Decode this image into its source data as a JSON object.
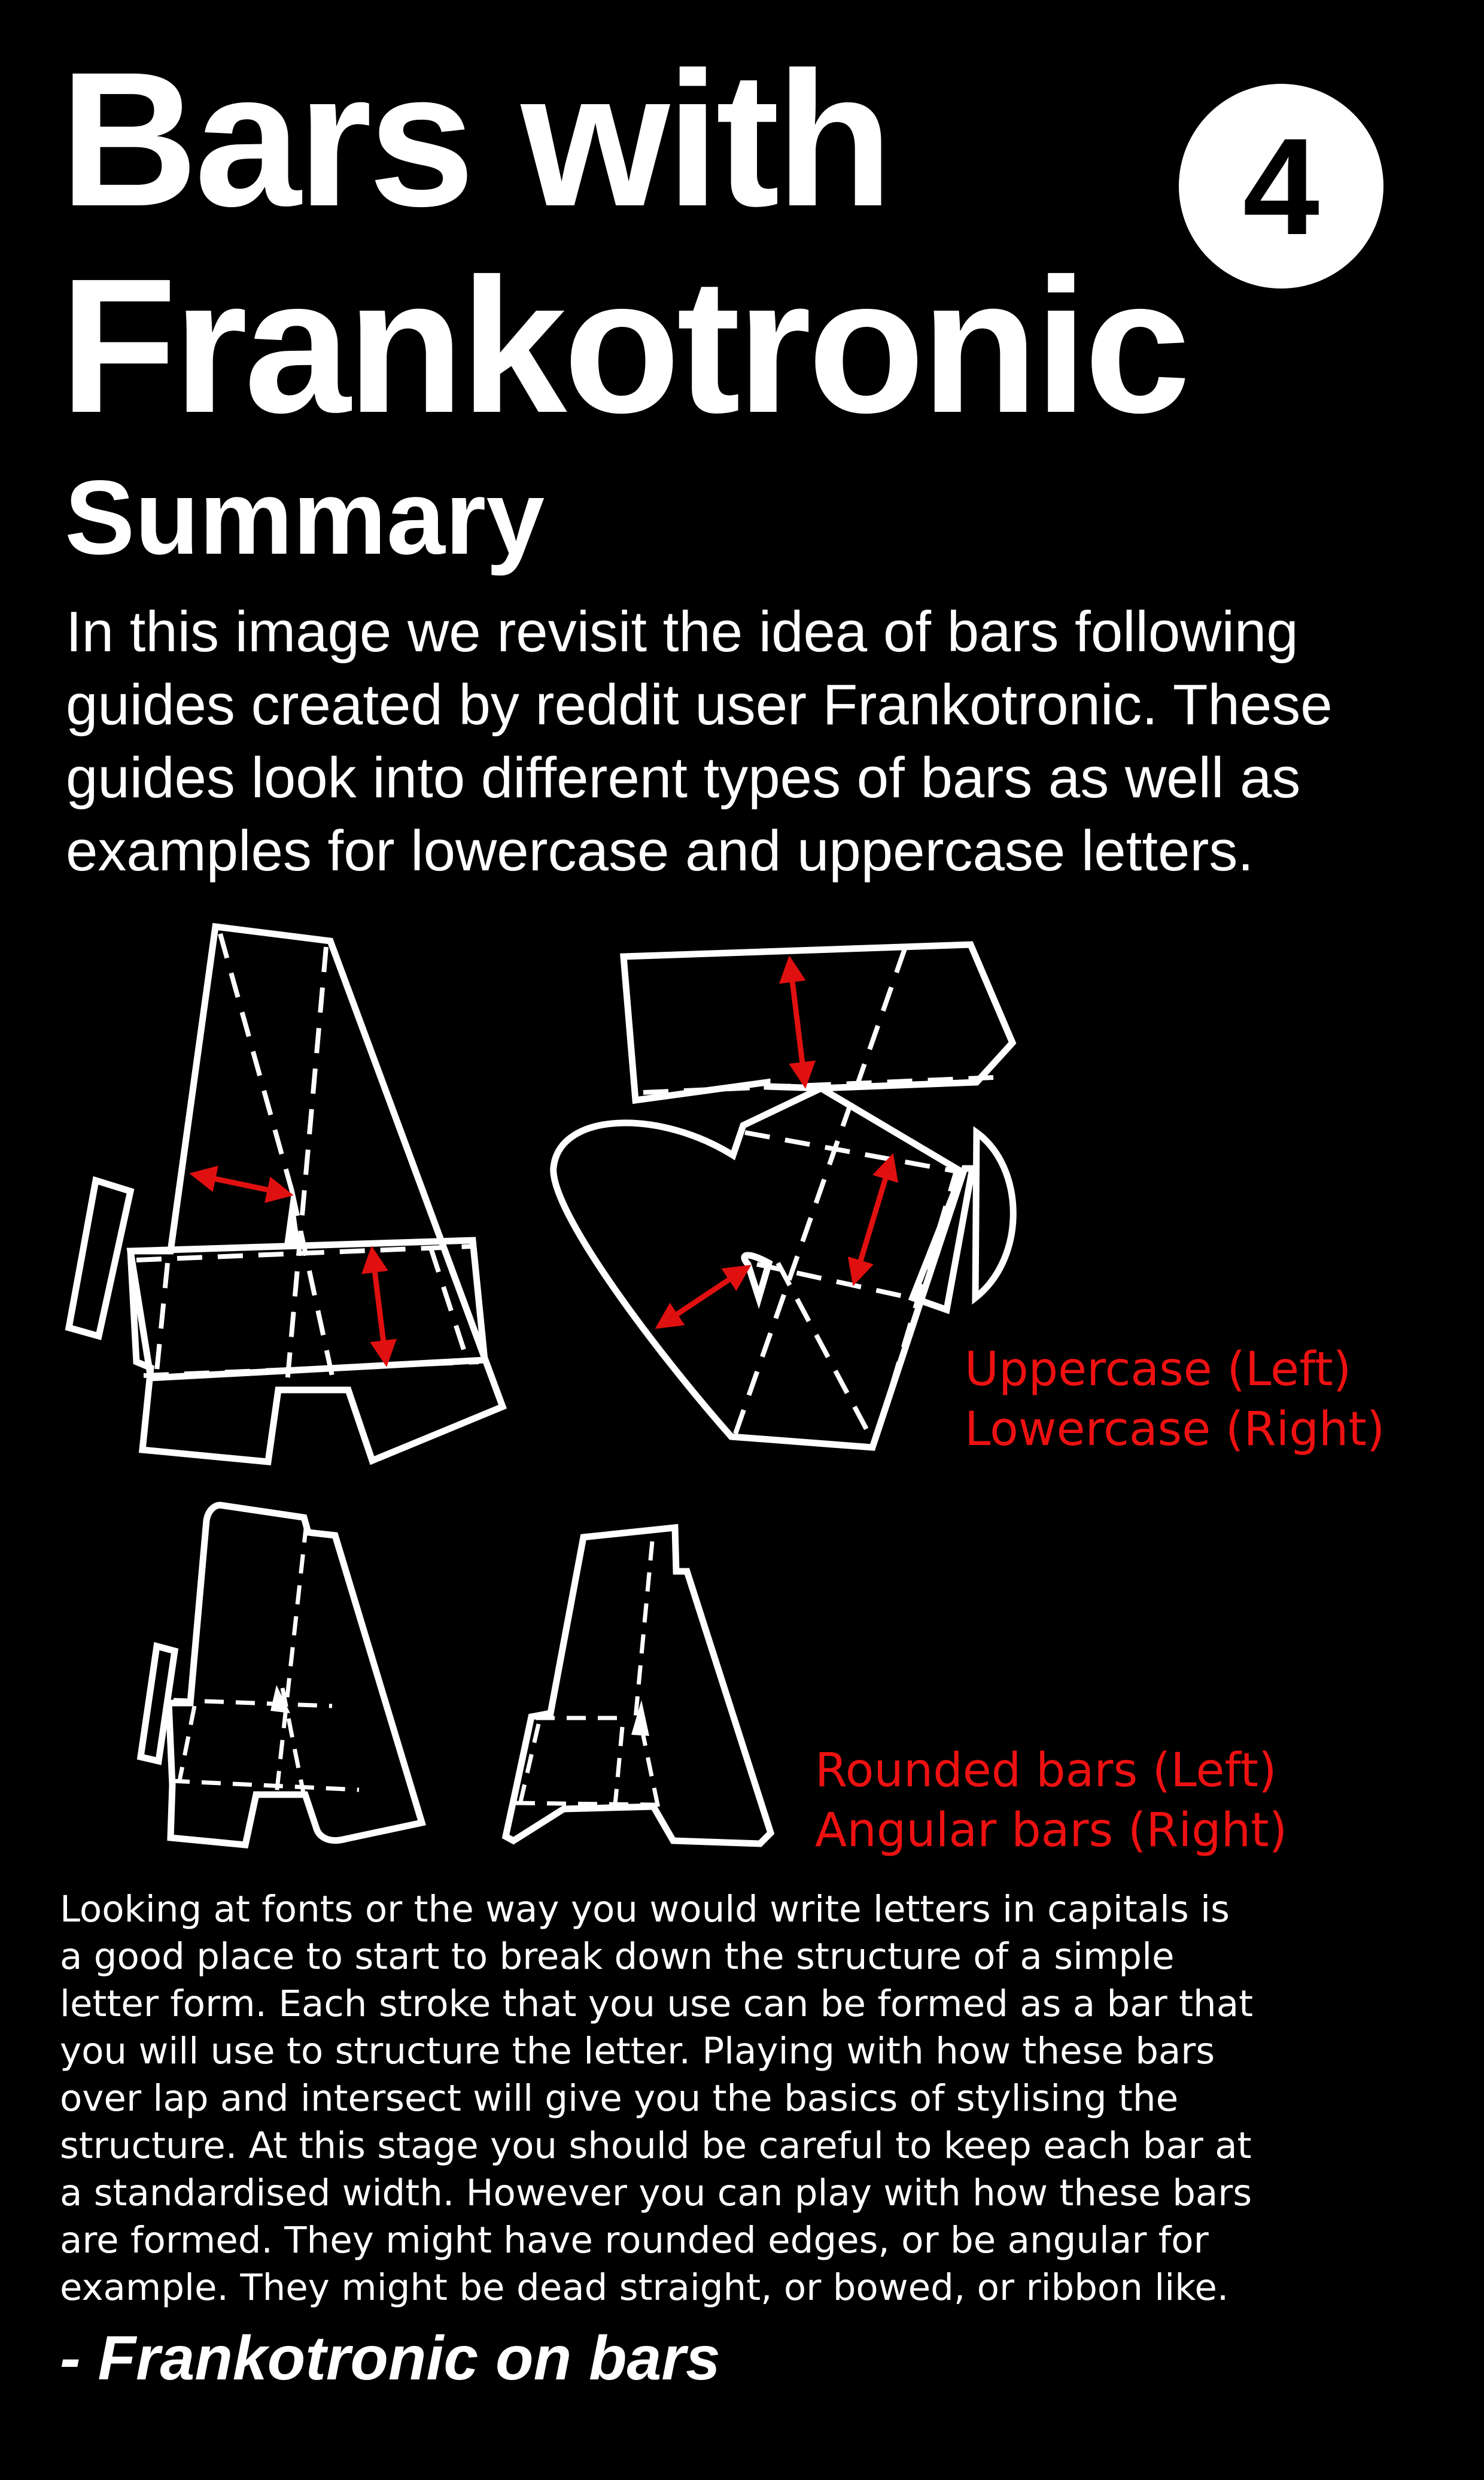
{
  "header": {
    "title_line1": "Bars with",
    "title_line2": "Frankotronic",
    "badge_number": "4"
  },
  "summary": {
    "heading": "Summary",
    "text": "In this image we revisit the idea of bars following guides created by reddit user Frankotronic. These guides look into different types of bars as well as examples for lowercase and uppercase letters."
  },
  "figures": {
    "caption1_line1": "Uppercase (Left)",
    "caption1_line2": "Lowercase (Right)",
    "caption2_line1": "Rounded bars (Left)",
    "caption2_line2": "Angular bars (Right)",
    "caption_color": "#ee1111",
    "diagram_icons": [
      "uppercase-a-bars-diagram",
      "lowercase-a-bars-diagram",
      "rounded-bars-a-diagram",
      "angular-bars-a-diagram"
    ]
  },
  "quote": {
    "text": "Looking at fonts or the way you would write letters in capitals is a good place to start to break down the structure of a simple letter form. Each stroke that you use can be formed as a bar that you will use to structure the letter. Playing with how these bars over lap and intersect will give you the basics of stylising the structure. At this stage you should be careful to keep each bar at a standardised width. However you can play with how these bars are formed. They might have rounded edges, or be angular for example. They might be dead straight, or bowed, or ribbon like.",
    "attribution": "- Frankotronic on bars"
  }
}
